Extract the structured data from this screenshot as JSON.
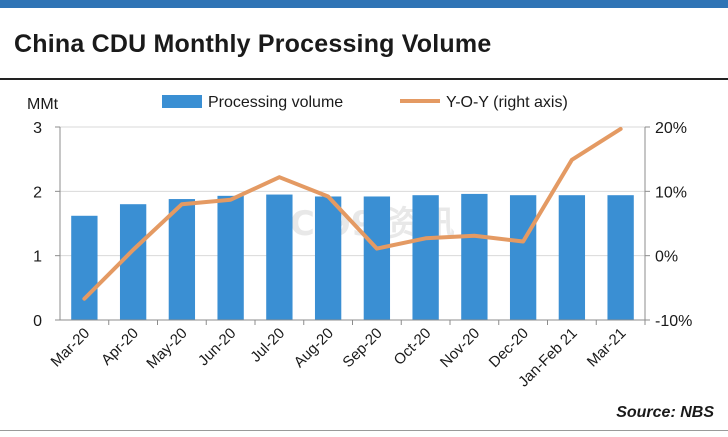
{
  "chart_data": {
    "type": "bar",
    "title": "China CDU Monthly Processing Volume",
    "categories": [
      "Mar-20",
      "Apr-20",
      "May-20",
      "Jun-20",
      "Jul-20",
      "Aug-20",
      "Sep-20",
      "Oct-20",
      "Nov-20",
      "Dec-20",
      "Jan-Feb 21",
      "Mar-21"
    ],
    "series": [
      {
        "name": "Processing volume",
        "type": "bar",
        "axis": "left",
        "color": "#3a8fd3",
        "values": [
          1.62,
          1.8,
          1.88,
          1.93,
          1.95,
          1.92,
          1.92,
          1.94,
          1.96,
          1.94,
          1.94,
          1.94
        ]
      },
      {
        "name": "Y-O-Y (right axis)",
        "type": "line",
        "axis": "right",
        "color": "#e49a63",
        "values": [
          -6.7,
          0.9,
          8.0,
          8.7,
          12.2,
          9.2,
          1.1,
          2.7,
          3.1,
          2.2,
          14.9,
          19.7
        ]
      }
    ],
    "ylabel": "MMt",
    "ylim": [
      0,
      3
    ],
    "yticks": [
      "0",
      "1",
      "2",
      "3"
    ],
    "y2lim": [
      -10,
      20
    ],
    "y2ticks": [
      "-10%",
      "0%",
      "10%",
      "20%"
    ],
    "legend_position": "top",
    "grid": "horizontal"
  },
  "source": "Source: NBS",
  "watermark": "SCI99 资讯"
}
